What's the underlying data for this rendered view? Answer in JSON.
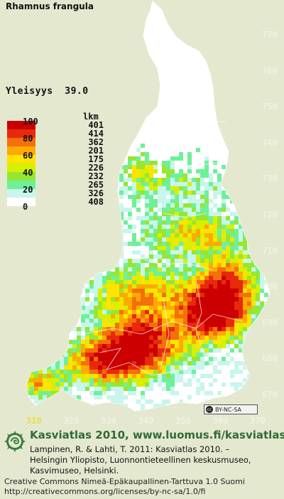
{
  "species": "Rhamnus frangula",
  "frequency": {
    "label": "Yleisyys",
    "value": "39.0"
  },
  "legend": {
    "count_header": "lkm",
    "classes": [
      {
        "percent": "100",
        "count": "401",
        "color": "#cc0000"
      },
      {
        "percent": "",
        "count": "414",
        "color": "#e82a0a"
      },
      {
        "percent": "80",
        "count": "362",
        "color": "#f4700a"
      },
      {
        "percent": "",
        "count": "201",
        "color": "#ffaa00"
      },
      {
        "percent": "60",
        "count": "175",
        "color": "#ffe400"
      },
      {
        "percent": "",
        "count": "226",
        "color": "#d6f000"
      },
      {
        "percent": "40",
        "count": "232",
        "color": "#96e632"
      },
      {
        "percent": "",
        "count": "265",
        "color": "#6ef09a"
      },
      {
        "percent": "20",
        "count": "326",
        "color": "#c8f5ec"
      },
      {
        "percent": "0",
        "count": "408",
        "color": "#ffffff"
      }
    ]
  },
  "grid": {
    "y_ticks": [
      "770",
      "760",
      "750",
      "740",
      "730",
      "720",
      "710",
      "700",
      "690",
      "680",
      "670"
    ],
    "x_ticks": [
      "310",
      "320",
      "330",
      "340",
      "350",
      "360",
      "370"
    ]
  },
  "license_badge": {
    "icon": "cc-icon",
    "text": "BY-NC-SA",
    "mark": "cc"
  },
  "footer": {
    "logo_icon": "spiral-leaf-icon",
    "title": "Kasviatlas 2010, www.luomus.fi/kasviatlas",
    "citation_line1": "Lampinen, R. & Lahti, T. 2011: Kasviatlas 2010. –",
    "citation_line2": "Helsingin Yliopisto, Luonnontieteellinen keskusmuseo,",
    "citation_line3": "Kasvimuseo, Helsinki.",
    "license_line1": "Creative Commons Nimeä-Epäkaupallinen-Tarttuva 1.0 Suomi",
    "license_line2": "http://creativecommons.org/licenses/by-nc-sa/1.0/fi"
  }
}
